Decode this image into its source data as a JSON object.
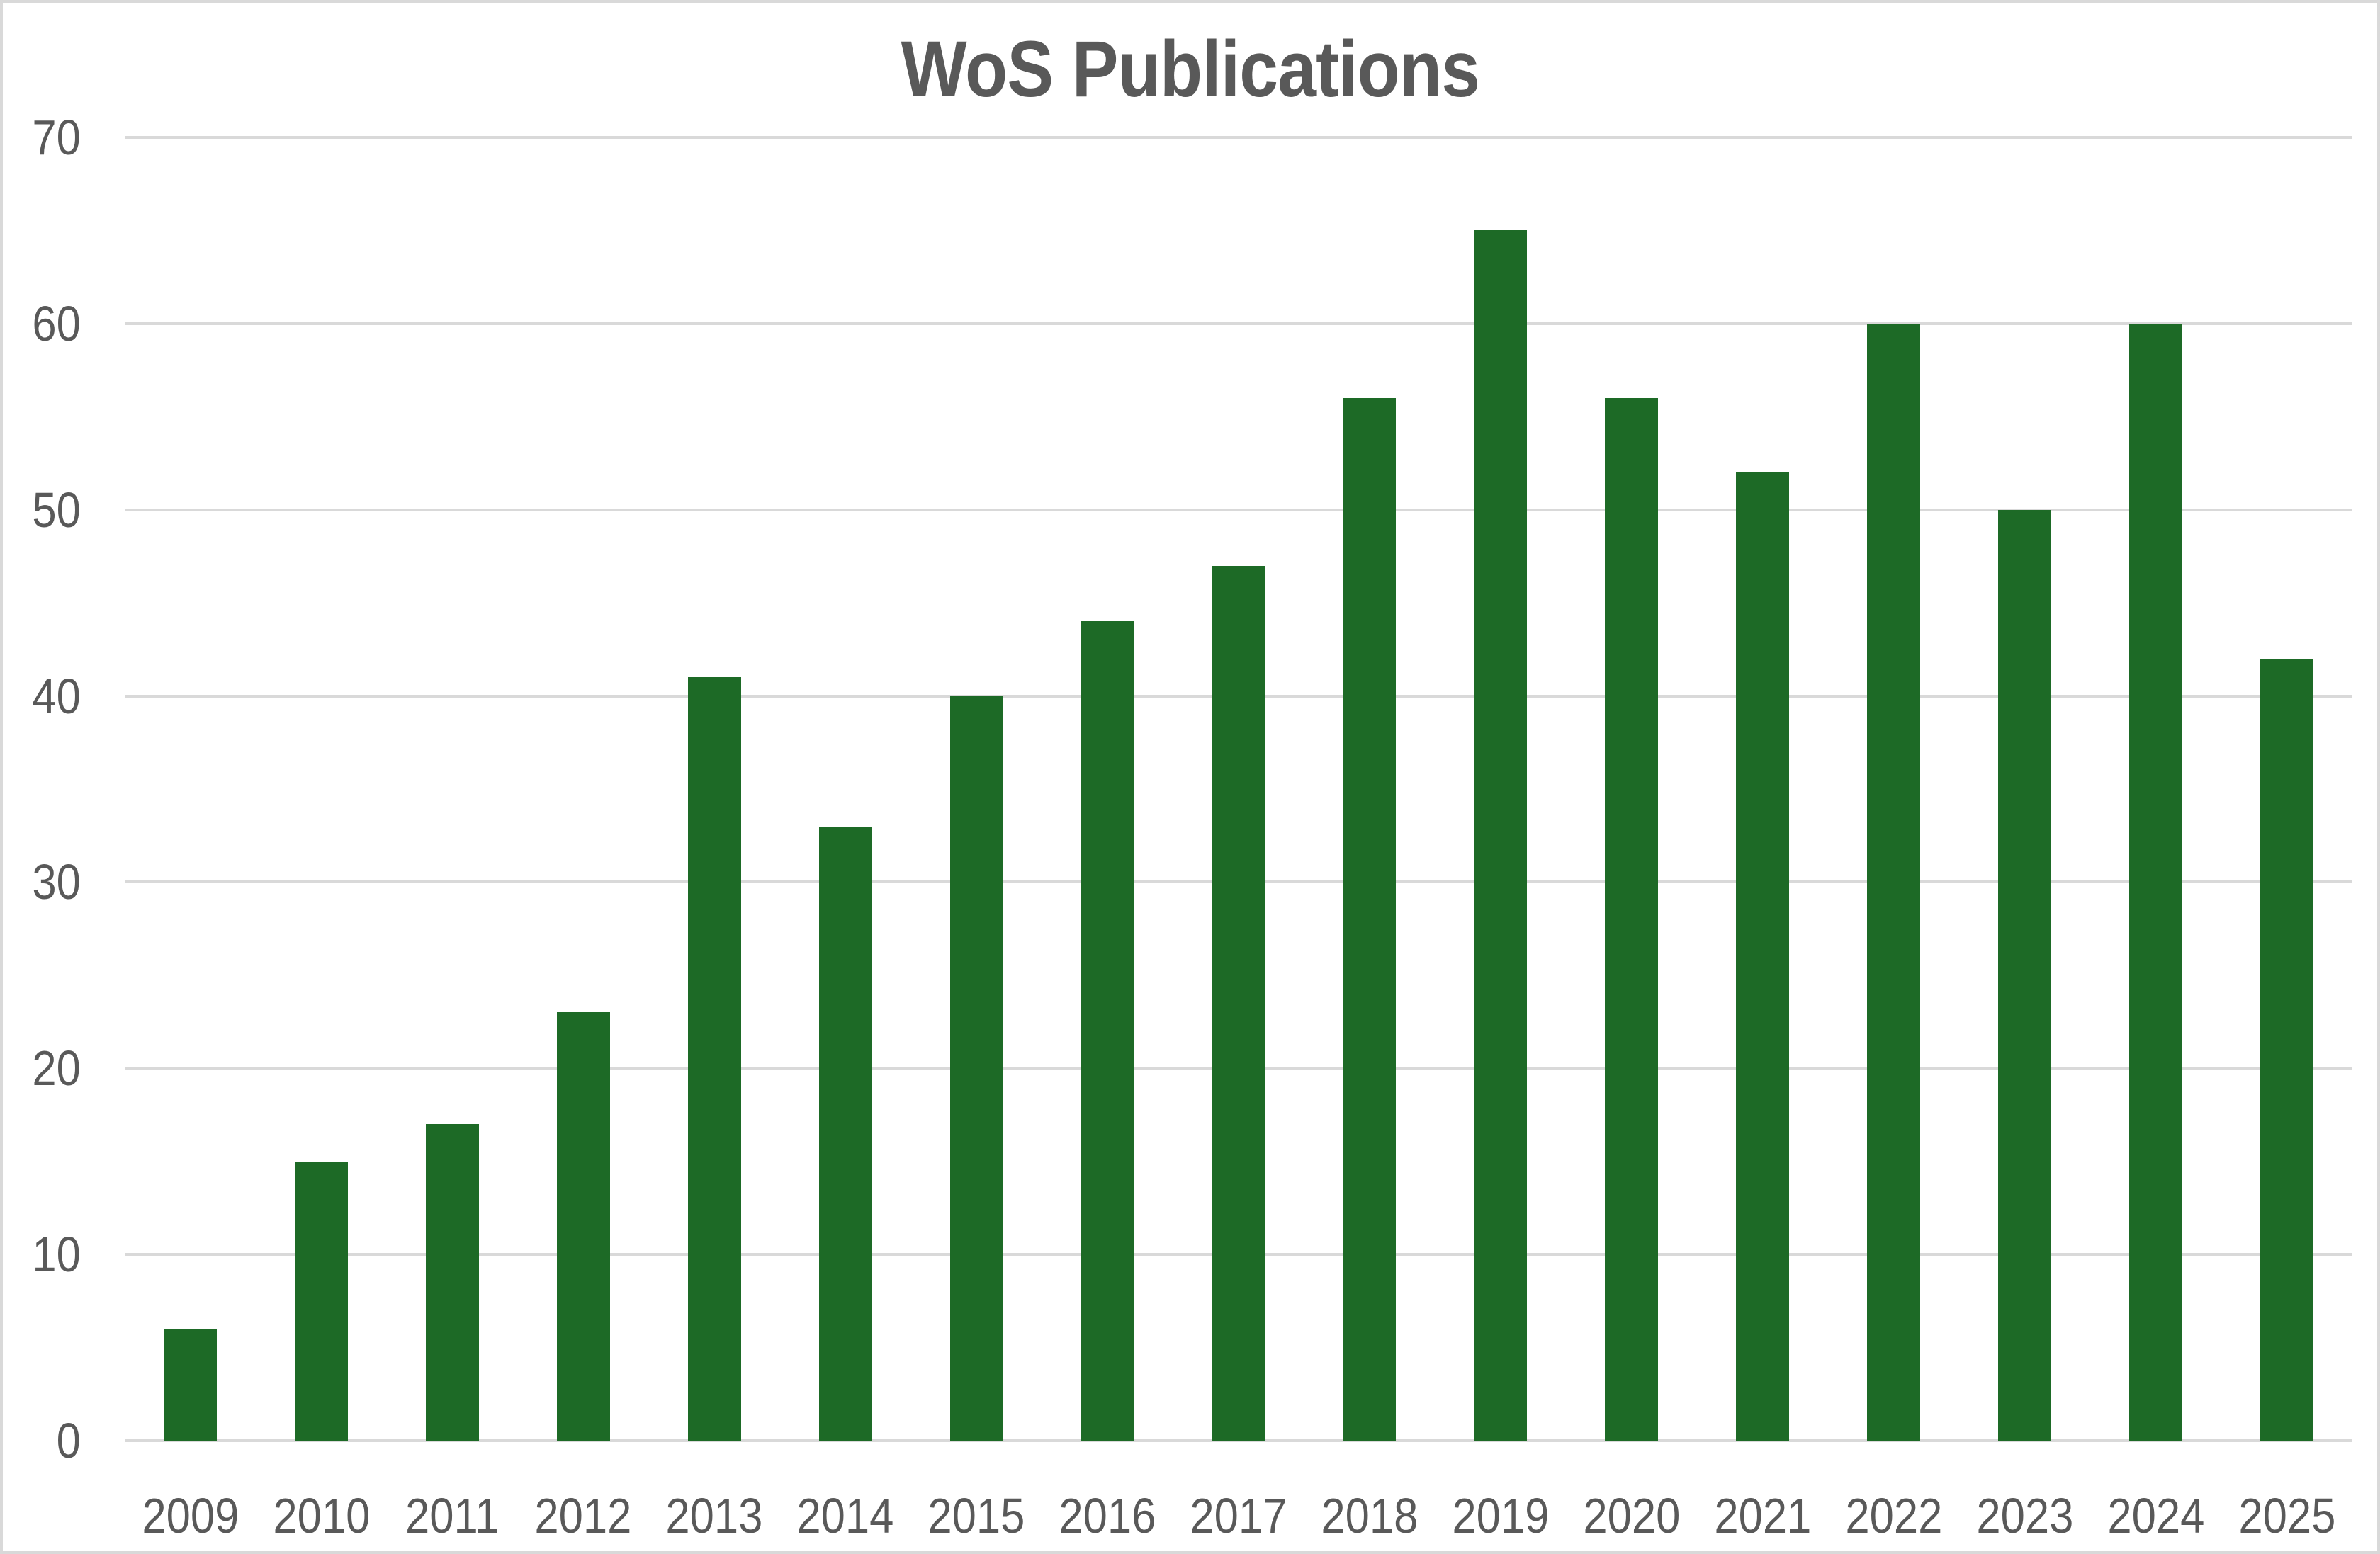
{
  "window": {
    "background": "#FFFFFF",
    "border_color": "#D9D9D9"
  },
  "chart_data": {
    "type": "bar",
    "title": "WoS Publications",
    "categories": [
      "2009",
      "2010",
      "2011",
      "2012",
      "2013",
      "2014",
      "2015",
      "2016",
      "2017",
      "2018",
      "2019",
      "2020",
      "2021",
      "2022",
      "2023",
      "2024",
      "2025"
    ],
    "values": [
      6,
      15,
      17,
      23,
      41,
      33,
      40,
      44,
      47,
      56,
      65,
      56,
      52,
      60,
      50,
      60,
      42
    ],
    "xlabel": "",
    "ylabel": "",
    "ylim": [
      0,
      70
    ],
    "yticks": [
      0,
      10,
      20,
      30,
      40,
      50,
      60,
      70
    ],
    "grid": "horizontal",
    "legend": "none",
    "bar_color": "#1D6A26",
    "gridline_color": "#D9D9D9",
    "axis_text_color": "#595959",
    "title_color": "#595959"
  }
}
